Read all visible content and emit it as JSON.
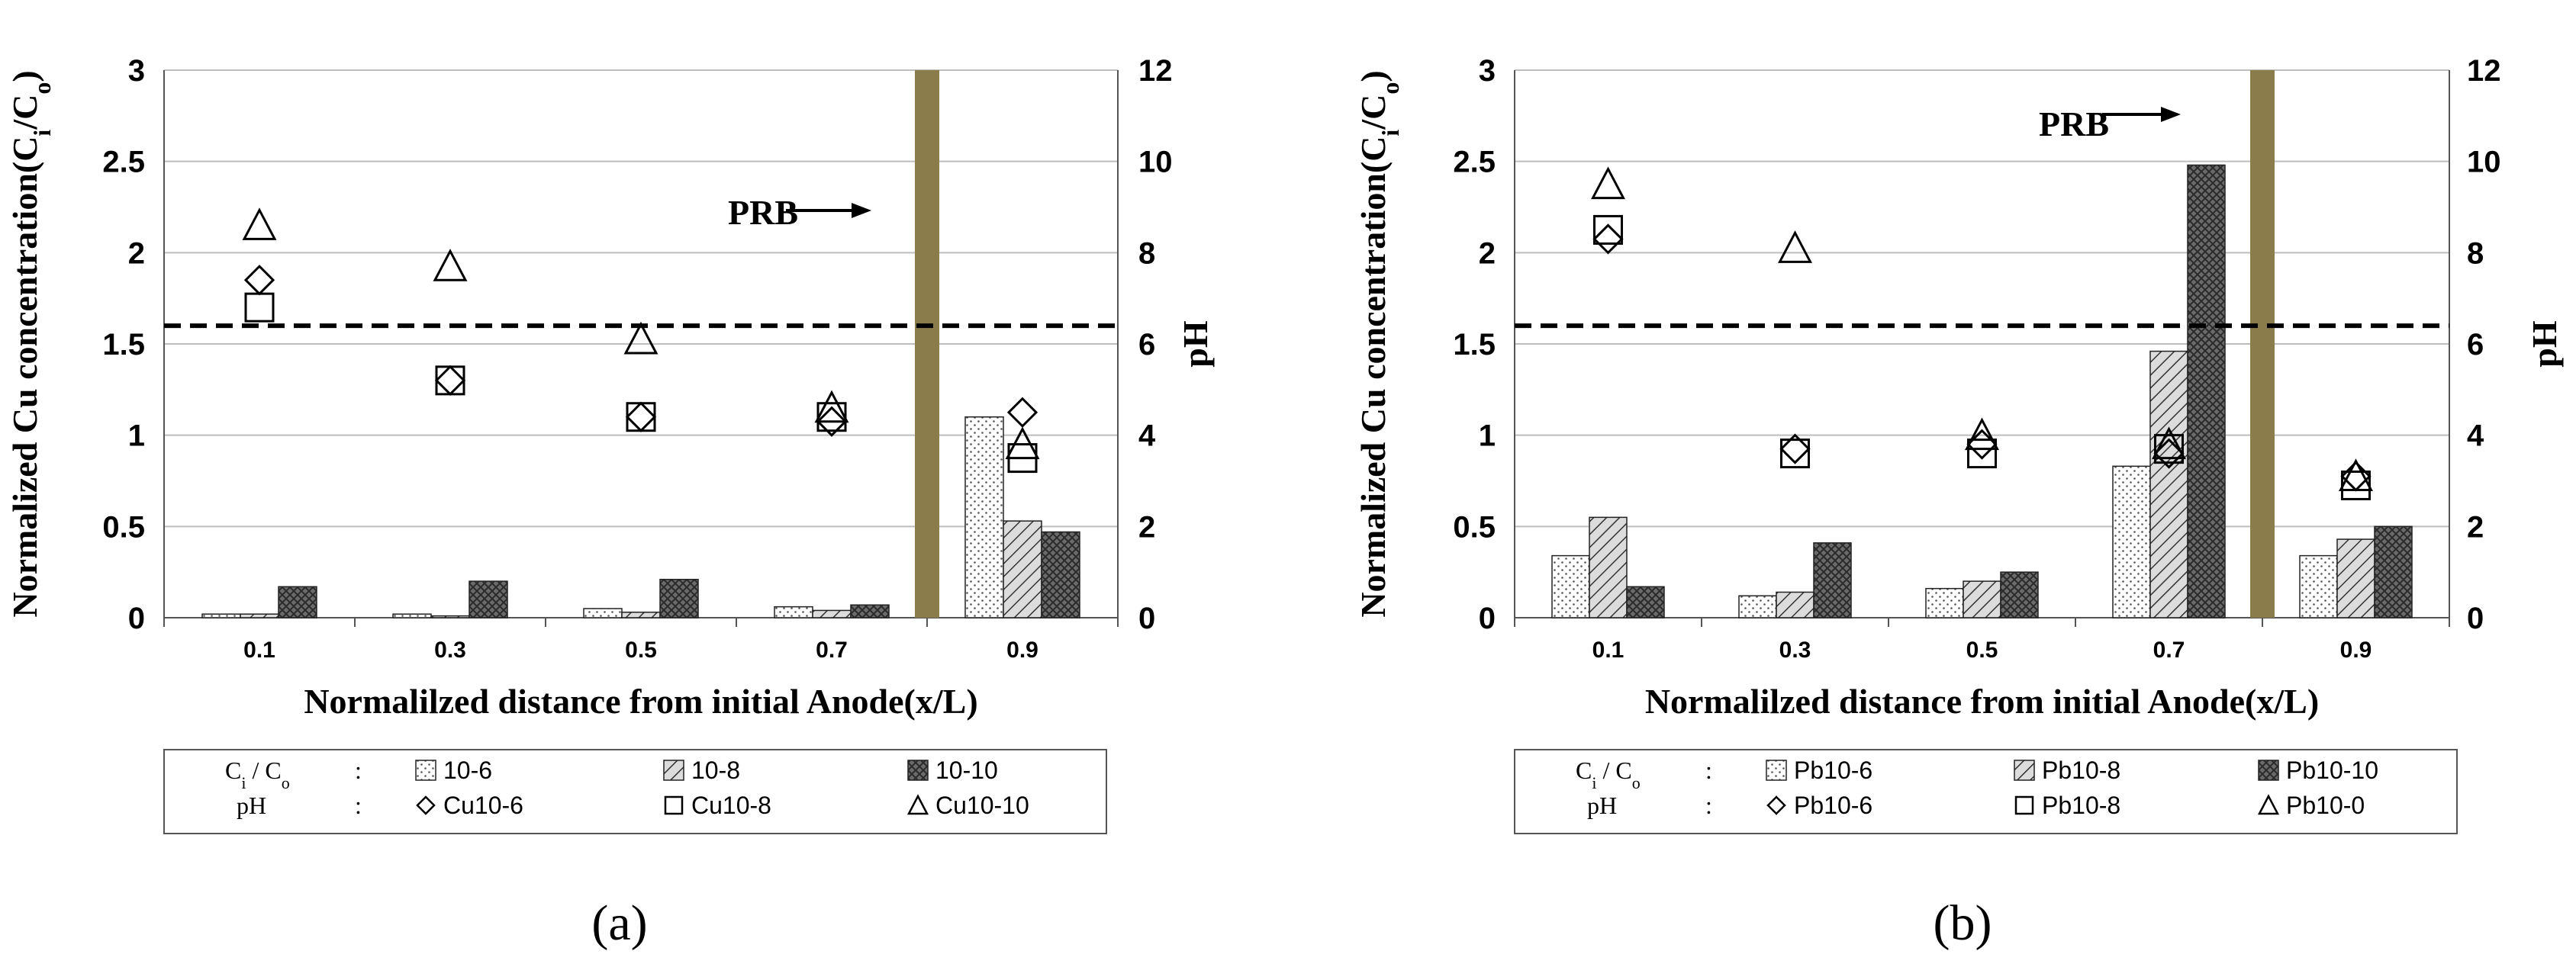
{
  "colors": {
    "bar_fill_10_6": "#ffffff",
    "bar_fill_10_8": "#cfcfcf",
    "bar_fill_10_10": "#6a6a6a",
    "prb": "#8b7d4b",
    "grid": "#bdbdbd",
    "axis": "#555555",
    "dashed": "#000000"
  },
  "chart_data": [
    {
      "panel": "a",
      "caption": "(a)",
      "type": "bar",
      "title": "",
      "categories": [
        "0.1",
        "0.3",
        "0.5",
        "0.7",
        "0.9"
      ],
      "xlabel": "Normalilzed distance from initial Anode(x/L)",
      "ylabel_left": "Normalized Cu concentration(C",
      "ylabel_sub_i": "i",
      "ylabel_mid": "/C",
      "ylabel_sub_o": "o",
      "ylabel_end": ")",
      "ylabel_right": "pH",
      "ylim_left": [
        0,
        3
      ],
      "yticks_left": [
        "0",
        "0.5",
        "1",
        "1.5",
        "2",
        "2.5",
        "3"
      ],
      "ylim_right": [
        0,
        12
      ],
      "yticks_right": [
        "0",
        "2",
        "4",
        "6",
        "8",
        "10",
        "12"
      ],
      "grid": true,
      "series": [
        {
          "name": "10-6",
          "kind": "bar",
          "pattern": "dots",
          "values": [
            0.02,
            0.02,
            0.05,
            0.06,
            1.1
          ]
        },
        {
          "name": "10-8",
          "kind": "bar",
          "pattern": "hatch",
          "values": [
            0.02,
            0.01,
            0.03,
            0.04,
            0.53
          ]
        },
        {
          "name": "10-10",
          "kind": "bar",
          "pattern": "dark",
          "values": [
            0.17,
            0.2,
            0.21,
            0.07,
            0.47
          ]
        }
      ],
      "markers": [
        {
          "name": "Cu10-6",
          "shape": "diamond",
          "ph": [
            7.4,
            5.2,
            4.4,
            4.3,
            4.5
          ]
        },
        {
          "name": "Cu10-8",
          "shape": "square",
          "ph": [
            6.8,
            5.2,
            4.4,
            4.4,
            3.5
          ]
        },
        {
          "name": "Cu10-10",
          "shape": "triangle",
          "ph": [
            8.6,
            7.7,
            6.1,
            4.6,
            3.8
          ]
        }
      ],
      "reference_ph": 6.4,
      "prb_label": "PRB",
      "prb_position_x": 0.8,
      "legend": {
        "row1_key": "C",
        "row1_sub_i": "i",
        "row1_slash": " / C",
        "row1_sub_o": "o",
        "row1_colon": ":",
        "row2_key": "pH",
        "row2_colon": ":",
        "row1_items": [
          "10-6",
          "10-8",
          "10-10"
        ],
        "row2_items": [
          "Cu10-6",
          "Cu10-8",
          "Cu10-10"
        ]
      }
    },
    {
      "panel": "b",
      "caption": "(b)",
      "type": "bar",
      "title": "",
      "categories": [
        "0.1",
        "0.3",
        "0.5",
        "0.7",
        "0.9"
      ],
      "xlabel": "Normalilzed distance from initial Anode(x/L)",
      "ylabel_left": "Normalized Cu concentration(C",
      "ylabel_sub_i": "i",
      "ylabel_mid": "/C",
      "ylabel_sub_o": "o",
      "ylabel_end": ")",
      "ylabel_right": "pH",
      "ylim_left": [
        0,
        3
      ],
      "yticks_left": [
        "0",
        "0.5",
        "1",
        "1.5",
        "2",
        "2.5",
        "3"
      ],
      "ylim_right": [
        0,
        12
      ],
      "yticks_right": [
        "0",
        "2",
        "4",
        "6",
        "8",
        "10",
        "12"
      ],
      "grid": true,
      "series": [
        {
          "name": "Pb10-6",
          "kind": "bar",
          "pattern": "dots",
          "values": [
            0.34,
            0.12,
            0.16,
            0.83,
            0.34
          ]
        },
        {
          "name": "Pb10-8",
          "kind": "bar",
          "pattern": "hatch",
          "values": [
            0.55,
            0.14,
            0.2,
            1.46,
            0.43
          ]
        },
        {
          "name": "Pb10-10",
          "kind": "bar",
          "pattern": "dark",
          "values": [
            0.17,
            0.41,
            0.25,
            2.48,
            0.5
          ]
        }
      ],
      "markers": [
        {
          "name": "Pb10-6",
          "shape": "diamond",
          "ph": [
            8.3,
            3.7,
            3.8,
            3.6,
            3.1
          ]
        },
        {
          "name": "Pb10-8",
          "shape": "square",
          "ph": [
            8.5,
            3.6,
            3.6,
            3.7,
            2.9
          ]
        },
        {
          "name": "Pb10-0",
          "shape": "triangle",
          "ph": [
            9.5,
            8.1,
            4.0,
            3.8,
            3.1
          ]
        }
      ],
      "reference_ph": 6.4,
      "prb_label": "PRB",
      "prb_position_x": 0.8,
      "legend": {
        "row1_key": "C",
        "row1_sub_i": "i",
        "row1_slash": " / C",
        "row1_sub_o": "o",
        "row1_colon": ":",
        "row2_key": "pH",
        "row2_colon": ":",
        "row1_items": [
          "Pb10-6",
          "Pb10-8",
          "Pb10-10"
        ],
        "row2_items": [
          "Pb10-6",
          "Pb10-8",
          "Pb10-0"
        ]
      }
    }
  ]
}
